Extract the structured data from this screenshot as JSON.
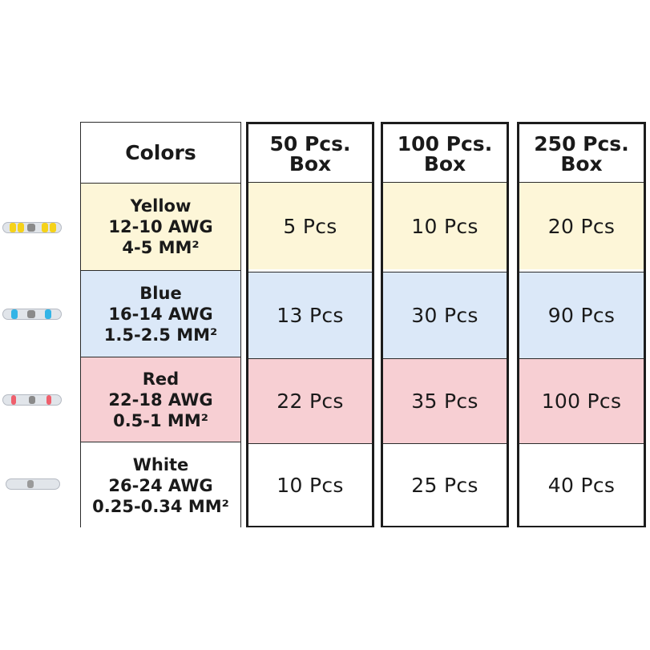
{
  "table": {
    "colors_header": "Colors",
    "box_headers": [
      {
        "line1": "50 Pcs.",
        "line2": "Box"
      },
      {
        "line1": "100 Pcs.",
        "line2": "Box"
      },
      {
        "line1": "250 Pcs.",
        "line2": "Box"
      }
    ],
    "rows": [
      {
        "name": "Yellow",
        "awg": "12-10 AWG",
        "mm": "4-5 MM²",
        "color": "#fdf6d8",
        "band_color": "#f5d21a",
        "quantities": [
          "5 Pcs",
          "10 Pcs",
          "20 Pcs"
        ]
      },
      {
        "name": "Blue",
        "awg": "16-14 AWG",
        "mm": "1.5-2.5 MM²",
        "color": "#dbe8f8",
        "band_color": "#33b4e6",
        "quantities": [
          "13 Pcs",
          "30 Pcs",
          "90 Pcs"
        ]
      },
      {
        "name": "Red",
        "awg": "22-18 AWG",
        "mm": "0.5-1 MM²",
        "color": "#f7cfd3",
        "band_color": "#ef5f6c",
        "quantities": [
          "22 Pcs",
          "35 Pcs",
          "100 Pcs"
        ]
      },
      {
        "name": "White",
        "awg": "26-24 AWG",
        "mm": "0.25-0.34 MM²",
        "color": "#ffffff",
        "band_color": "#e3e6ea",
        "quantities": [
          "10 Pcs",
          "25 Pcs",
          "40 Pcs"
        ]
      }
    ]
  }
}
